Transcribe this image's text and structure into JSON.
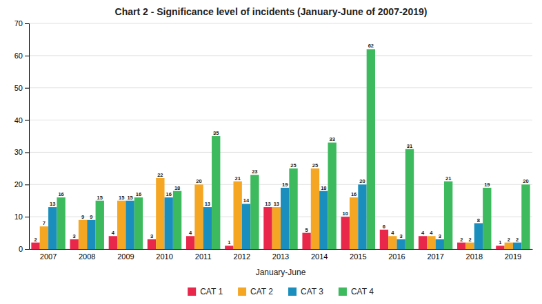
{
  "chart_data": {
    "type": "bar",
    "title": "Chart 2 - Significance level of incidents (January-June of 2007-2019)",
    "x_label": "January-June",
    "categories": [
      "2007",
      "2008",
      "2009",
      "2010",
      "2011",
      "2012",
      "2013",
      "2014",
      "2015",
      "2016",
      "2017",
      "2018",
      "2019"
    ],
    "series": [
      {
        "name": "CAT 1",
        "color": "#e8274b",
        "values": [
          2,
          3,
          4,
          3,
          4,
          1,
          13,
          5,
          10,
          6,
          4,
          2,
          1
        ]
      },
      {
        "name": "CAT 2",
        "color": "#f5a623",
        "values": [
          7,
          9,
          15,
          22,
          20,
          21,
          13,
          25,
          16,
          4,
          4,
          2,
          2
        ]
      },
      {
        "name": "CAT 3",
        "color": "#1a8fbd",
        "values": [
          13,
          9,
          15,
          16,
          13,
          14,
          19,
          18,
          20,
          3,
          3,
          8,
          2
        ]
      },
      {
        "name": "CAT 4",
        "color": "#3dba5e",
        "values": [
          16,
          15,
          16,
          18,
          35,
          23,
          25,
          33,
          62,
          31,
          21,
          19,
          20
        ]
      }
    ],
    "ylim": [
      0,
      70
    ],
    "yticks": [
      0,
      10,
      20,
      30,
      40,
      50,
      60,
      70
    ],
    "grid": true,
    "legend": "bottom",
    "data_labels": true
  }
}
